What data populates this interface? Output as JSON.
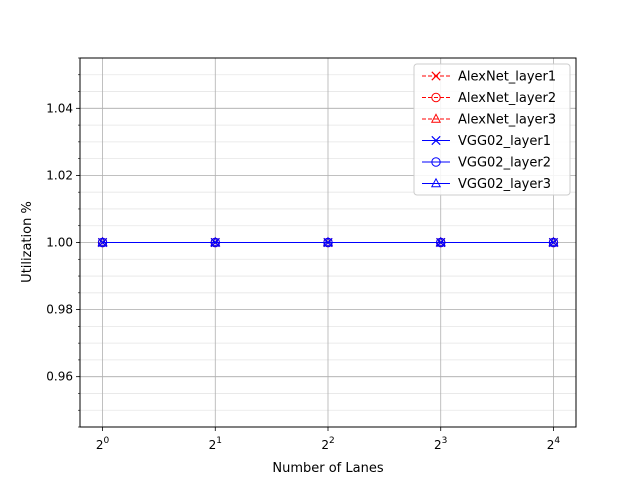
{
  "chart_data": {
    "type": "line",
    "xlabel": "Number of Lanes",
    "ylabel": "Utilization %",
    "x_scale": "log2",
    "x": [
      1,
      2,
      4,
      8,
      16
    ],
    "x_tick_labels": [
      {
        "base": "2",
        "exp": "0"
      },
      {
        "base": "2",
        "exp": "1"
      },
      {
        "base": "2",
        "exp": "2"
      },
      {
        "base": "2",
        "exp": "3"
      },
      {
        "base": "2",
        "exp": "4"
      }
    ],
    "ylim": [
      0.945,
      1.055
    ],
    "y_ticks": [
      0.96,
      0.98,
      1.0,
      1.02,
      1.04
    ],
    "y_tick_labels": [
      "0.96",
      "0.98",
      "1.00",
      "1.02",
      "1.04"
    ],
    "grid": true,
    "legend_position": "top-right",
    "series": [
      {
        "name": "AlexNet_layer1",
        "color": "#ff0000",
        "marker": "x",
        "linestyle": "dashed",
        "values": [
          1,
          1,
          1,
          1,
          1
        ]
      },
      {
        "name": "AlexNet_layer2",
        "color": "#ff0000",
        "marker": "circle",
        "linestyle": "dashed",
        "values": [
          1,
          1,
          1,
          1,
          1
        ]
      },
      {
        "name": "AlexNet_layer3",
        "color": "#ff0000",
        "marker": "triangle",
        "linestyle": "dashed",
        "values": [
          1,
          1,
          1,
          1,
          1
        ]
      },
      {
        "name": "VGG02_layer1",
        "color": "#0000ff",
        "marker": "x",
        "linestyle": "solid",
        "values": [
          1,
          1,
          1,
          1,
          1
        ]
      },
      {
        "name": "VGG02_layer2",
        "color": "#0000ff",
        "marker": "circle",
        "linestyle": "solid",
        "values": [
          1,
          1,
          1,
          1,
          1
        ]
      },
      {
        "name": "VGG02_layer3",
        "color": "#0000ff",
        "marker": "triangle",
        "linestyle": "solid",
        "values": [
          1,
          1,
          1,
          1,
          1
        ]
      }
    ]
  }
}
